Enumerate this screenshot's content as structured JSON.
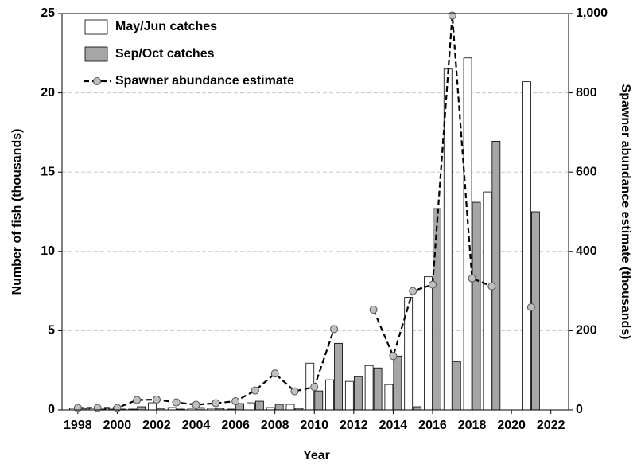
{
  "chart_data": {
    "type": "bar",
    "x": [
      1998,
      1999,
      2000,
      2001,
      2002,
      2003,
      2004,
      2005,
      2006,
      2007,
      2008,
      2009,
      2010,
      2011,
      2012,
      2013,
      2014,
      2015,
      2016,
      2017,
      2018,
      2019,
      2020,
      2021
    ],
    "series": [
      {
        "name": "May/Jun catches",
        "color": "#ffffff",
        "type": "bar",
        "values": [
          0.1,
          0.1,
          0.05,
          0.05,
          0.45,
          0.15,
          0.1,
          0.1,
          0.05,
          0.45,
          0.15,
          0.35,
          2.95,
          1.9,
          1.8,
          2.8,
          1.6,
          7.1,
          8.4,
          21.5,
          22.2,
          13.75,
          null,
          20.7
        ]
      },
      {
        "name": "Sep/Oct catches",
        "color": "#a6a6a6",
        "type": "bar",
        "values": [
          0.1,
          0.05,
          0.05,
          0.2,
          0.1,
          0.05,
          0.15,
          0.1,
          0.4,
          0.55,
          0.35,
          0.1,
          1.2,
          4.2,
          2.1,
          2.65,
          3.4,
          0.2,
          12.7,
          3.05,
          13.1,
          16.95,
          null,
          12.5
        ]
      },
      {
        "name": "Spawner abundance estimate",
        "color": "#000000",
        "marker_color": "#c0c0c0",
        "type": "line",
        "axis": "y2",
        "values": [
          5,
          5,
          5,
          25,
          26,
          19,
          13,
          17,
          22,
          49,
          92,
          47,
          58,
          204,
          null,
          253,
          136,
          300,
          316,
          995,
          332,
          312,
          null,
          259
        ]
      }
    ],
    "xlabel": "Year",
    "ylabel": "Number of fish (thousands)",
    "y2label": "Spawner abundance estimate (thousands)",
    "xlim": [
      1997.2,
      2022.9
    ],
    "xticks": [
      1998,
      2000,
      2002,
      2004,
      2006,
      2008,
      2010,
      2012,
      2014,
      2016,
      2018,
      2020,
      2022
    ],
    "ylim": [
      0,
      25
    ],
    "yticks": [
      0,
      5,
      10,
      15,
      20,
      25
    ],
    "y2lim": [
      0,
      1000
    ],
    "y2ticks": [
      0,
      200,
      400,
      600,
      800,
      {
        "value": 1000,
        "label": "1,000"
      }
    ],
    "grid": true,
    "legend": "upper left"
  }
}
